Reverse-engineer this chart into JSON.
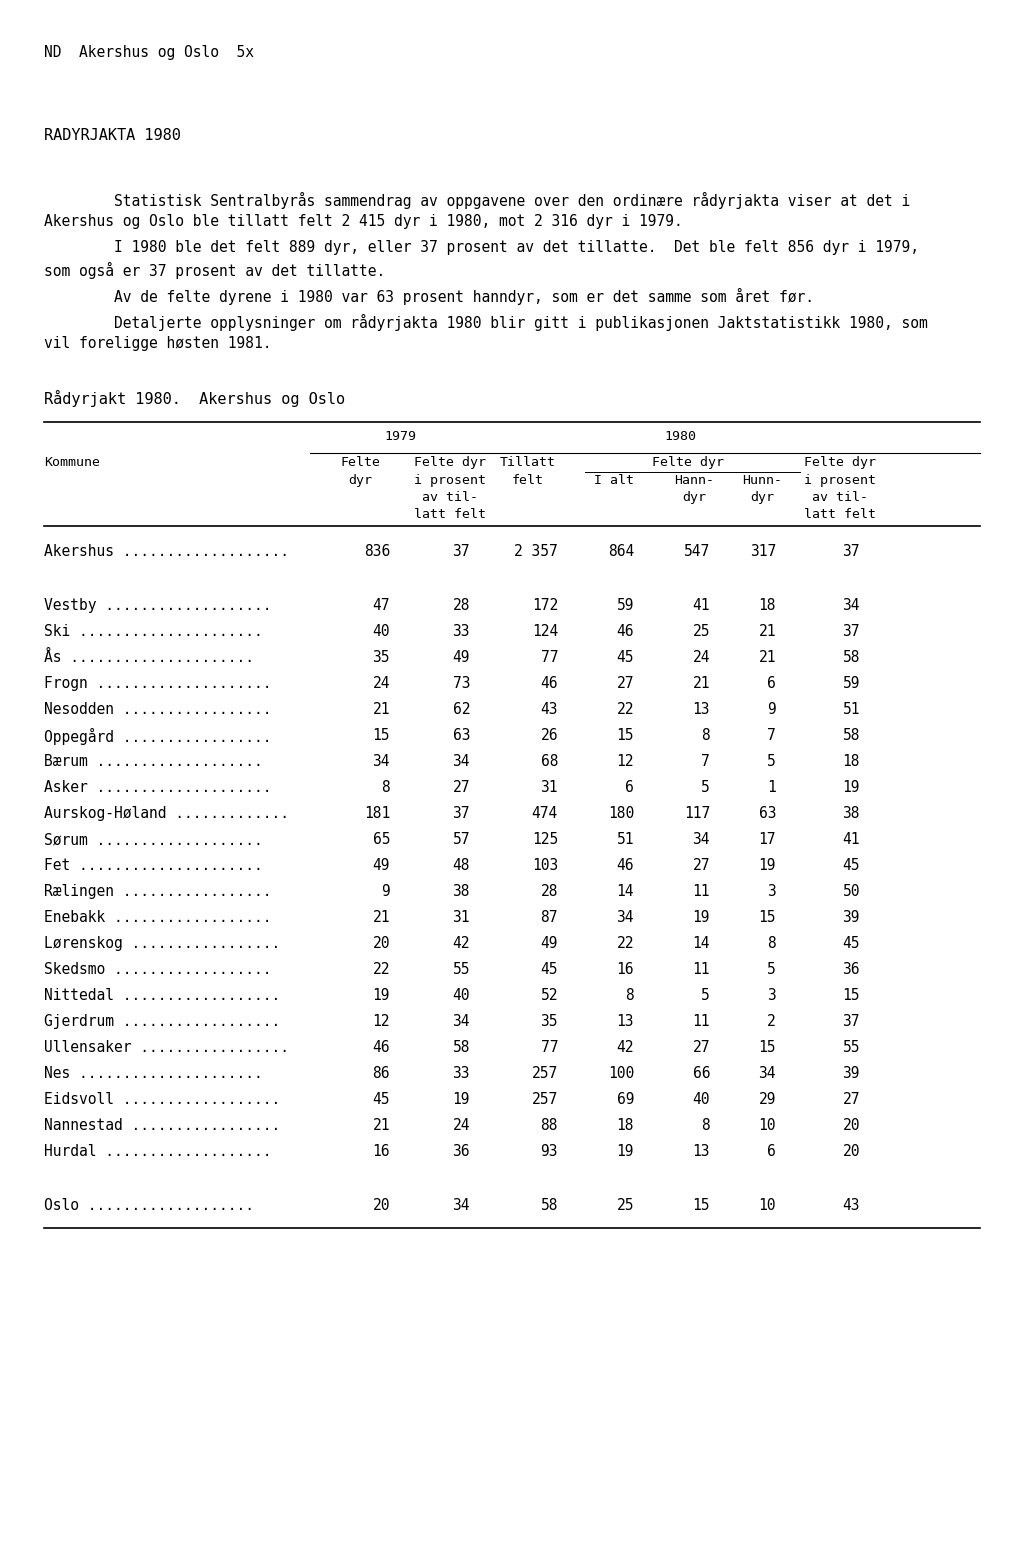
{
  "page_header": "ND  Akershus og Oslo  5x",
  "title": "RADYRJAKTA 1980",
  "para1_l1": "        Statistisk Sentralbyrås sammendrag av oppgavene over den ordinære rådyrjakta viser at det i",
  "para1_l2": "Akershus og Oslo ble tillatt felt 2 415 dyr i 1980, mot 2 316 dyr i 1979.",
  "para2_l1": "        I 1980 ble det felt 889 dyr, eller 37 prosent av det tillatte.  Det ble felt 856 dyr i 1979,",
  "para2_l2": "som også er 37 prosent av det tillatte.",
  "para3_l1": "        Av de felte dyrene i 1980 var 63 prosent hanndyr, som er det samme som året før.",
  "para4_l1": "        Detaljerte opplysninger om rådyrjakta 1980 blir gitt i publikasjonen Jaktstatistikk 1980, som",
  "para4_l2": "vil foreligge høsten 1981.",
  "table_title": "Rådyrjakt 1980.  Akershus og Oslo",
  "rows": [
    {
      "name": "Akershus",
      "ndots": 19,
      "felte_dyr": "836",
      "pct_1979": "37",
      "tillatt": "2 357",
      "i_alt": "864",
      "hann": "547",
      "hunn": "317",
      "pct_1980": "37",
      "sep_before": false,
      "sep_after": true
    },
    {
      "name": "Vestby",
      "ndots": 19,
      "felte_dyr": "47",
      "pct_1979": "28",
      "tillatt": "172",
      "i_alt": "59",
      "hann": "41",
      "hunn": "18",
      "pct_1980": "34",
      "sep_before": true,
      "sep_after": false
    },
    {
      "name": "Ski",
      "ndots": 21,
      "felte_dyr": "40",
      "pct_1979": "33",
      "tillatt": "124",
      "i_alt": "46",
      "hann": "25",
      "hunn": "21",
      "pct_1980": "37",
      "sep_before": false,
      "sep_after": false
    },
    {
      "name": "Ås",
      "ndots": 21,
      "felte_dyr": "35",
      "pct_1979": "49",
      "tillatt": "77",
      "i_alt": "45",
      "hann": "24",
      "hunn": "21",
      "pct_1980": "58",
      "sep_before": false,
      "sep_after": false
    },
    {
      "name": "Frogn",
      "ndots": 20,
      "felte_dyr": "24",
      "pct_1979": "73",
      "tillatt": "46",
      "i_alt": "27",
      "hann": "21",
      "hunn": "6",
      "pct_1980": "59",
      "sep_before": false,
      "sep_after": false
    },
    {
      "name": "Nesodden",
      "ndots": 17,
      "felte_dyr": "21",
      "pct_1979": "62",
      "tillatt": "43",
      "i_alt": "22",
      "hann": "13",
      "hunn": "9",
      "pct_1980": "51",
      "sep_before": false,
      "sep_after": false
    },
    {
      "name": "Oppegård",
      "ndots": 17,
      "felte_dyr": "15",
      "pct_1979": "63",
      "tillatt": "26",
      "i_alt": "15",
      "hann": "8",
      "hunn": "7",
      "pct_1980": "58",
      "sep_before": false,
      "sep_after": false
    },
    {
      "name": "Bærum",
      "ndots": 19,
      "felte_dyr": "34",
      "pct_1979": "34",
      "tillatt": "68",
      "i_alt": "12",
      "hann": "7",
      "hunn": "5",
      "pct_1980": "18",
      "sep_before": false,
      "sep_after": false
    },
    {
      "name": "Asker",
      "ndots": 20,
      "felte_dyr": "8",
      "pct_1979": "27",
      "tillatt": "31",
      "i_alt": "6",
      "hann": "5",
      "hunn": "1",
      "pct_1980": "19",
      "sep_before": false,
      "sep_after": false
    },
    {
      "name": "Aurskog-Høland",
      "ndots": 13,
      "felte_dyr": "181",
      "pct_1979": "37",
      "tillatt": "474",
      "i_alt": "180",
      "hann": "117",
      "hunn": "63",
      "pct_1980": "38",
      "sep_before": false,
      "sep_after": false
    },
    {
      "name": "Sørum",
      "ndots": 19,
      "felte_dyr": "65",
      "pct_1979": "57",
      "tillatt": "125",
      "i_alt": "51",
      "hann": "34",
      "hunn": "17",
      "pct_1980": "41",
      "sep_before": false,
      "sep_after": false
    },
    {
      "name": "Fet",
      "ndots": 21,
      "felte_dyr": "49",
      "pct_1979": "48",
      "tillatt": "103",
      "i_alt": "46",
      "hann": "27",
      "hunn": "19",
      "pct_1980": "45",
      "sep_before": false,
      "sep_after": false
    },
    {
      "name": "Rælingen",
      "ndots": 17,
      "felte_dyr": "9",
      "pct_1979": "38",
      "tillatt": "28",
      "i_alt": "14",
      "hann": "11",
      "hunn": "3",
      "pct_1980": "50",
      "sep_before": false,
      "sep_after": false
    },
    {
      "name": "Enebakk",
      "ndots": 18,
      "felte_dyr": "21",
      "pct_1979": "31",
      "tillatt": "87",
      "i_alt": "34",
      "hann": "19",
      "hunn": "15",
      "pct_1980": "39",
      "sep_before": false,
      "sep_after": false
    },
    {
      "name": "Lørenskog",
      "ndots": 17,
      "felte_dyr": "20",
      "pct_1979": "42",
      "tillatt": "49",
      "i_alt": "22",
      "hann": "14",
      "hunn": "8",
      "pct_1980": "45",
      "sep_before": false,
      "sep_after": false
    },
    {
      "name": "Skedsmo",
      "ndots": 18,
      "felte_dyr": "22",
      "pct_1979": "55",
      "tillatt": "45",
      "i_alt": "16",
      "hann": "11",
      "hunn": "5",
      "pct_1980": "36",
      "sep_before": false,
      "sep_after": false
    },
    {
      "name": "Nittedal",
      "ndots": 18,
      "felte_dyr": "19",
      "pct_1979": "40",
      "tillatt": "52",
      "i_alt": "8",
      "hann": "5",
      "hunn": "3",
      "pct_1980": "15",
      "sep_before": false,
      "sep_after": false
    },
    {
      "name": "Gjerdrum",
      "ndots": 18,
      "felte_dyr": "12",
      "pct_1979": "34",
      "tillatt": "35",
      "i_alt": "13",
      "hann": "11",
      "hunn": "2",
      "pct_1980": "37",
      "sep_before": false,
      "sep_after": false
    },
    {
      "name": "Ullensaker",
      "ndots": 17,
      "felte_dyr": "46",
      "pct_1979": "58",
      "tillatt": "77",
      "i_alt": "42",
      "hann": "27",
      "hunn": "15",
      "pct_1980": "55",
      "sep_before": false,
      "sep_after": false
    },
    {
      "name": "Nes",
      "ndots": 21,
      "felte_dyr": "86",
      "pct_1979": "33",
      "tillatt": "257",
      "i_alt": "100",
      "hann": "66",
      "hunn": "34",
      "pct_1980": "39",
      "sep_before": false,
      "sep_after": false
    },
    {
      "name": "Eidsvoll",
      "ndots": 18,
      "felte_dyr": "45",
      "pct_1979": "19",
      "tillatt": "257",
      "i_alt": "69",
      "hann": "40",
      "hunn": "29",
      "pct_1980": "27",
      "sep_before": false,
      "sep_after": false
    },
    {
      "name": "Nannestad",
      "ndots": 17,
      "felte_dyr": "21",
      "pct_1979": "24",
      "tillatt": "88",
      "i_alt": "18",
      "hann": "8",
      "hunn": "10",
      "pct_1980": "20",
      "sep_before": false,
      "sep_after": false
    },
    {
      "name": "Hurdal",
      "ndots": 19,
      "felte_dyr": "16",
      "pct_1979": "36",
      "tillatt": "93",
      "i_alt": "19",
      "hann": "13",
      "hunn": "6",
      "pct_1980": "20",
      "sep_before": false,
      "sep_after": true
    },
    {
      "name": "Oslo",
      "ndots": 19,
      "felte_dyr": "20",
      "pct_1979": "34",
      "tillatt": "58",
      "i_alt": "25",
      "hann": "15",
      "hunn": "10",
      "pct_1980": "43",
      "sep_before": true,
      "sep_after": false
    }
  ],
  "bg_color": "#ffffff",
  "font_color": "#000000"
}
